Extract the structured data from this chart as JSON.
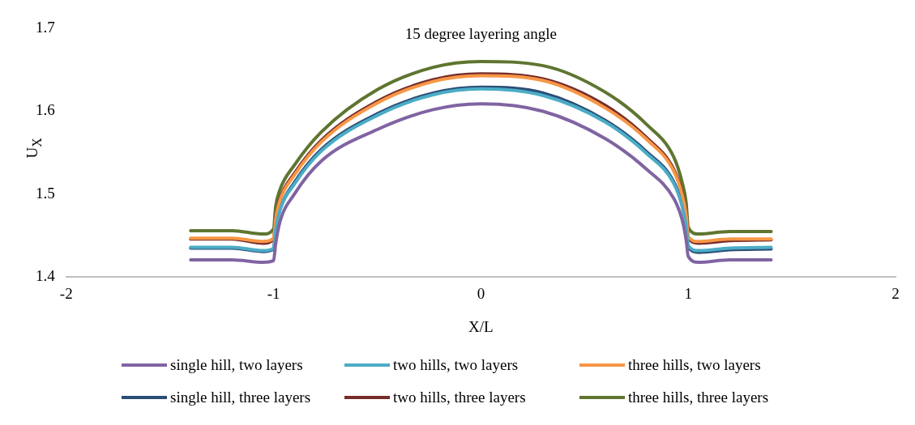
{
  "chart_data": {
    "type": "line",
    "title": "15 degree layering angle",
    "xlabel": "X/L",
    "ylabel": "U$_{X}$",
    "x": [
      -1.4,
      -1.2,
      -1.05,
      -1.0,
      -0.99,
      -0.97,
      -0.9,
      -0.77,
      -0.5,
      -0.23,
      0,
      0.3,
      0.6,
      0.8,
      0.93,
      0.97,
      0.99,
      1.0,
      1.05,
      1.2,
      1.4
    ],
    "xlim": [
      -2,
      2
    ],
    "xticks": [
      -2,
      -1,
      0,
      1,
      2
    ],
    "ylim": [
      1.4,
      1.7
    ],
    "yticks": [
      1.4,
      1.5,
      1.6,
      1.7
    ],
    "grid": false,
    "legend": "bottom",
    "marker": "none",
    "line_style": "solid",
    "series": [
      {
        "name": "single hill, two layers",
        "color": "#8064a2",
        "values": [
          1.421,
          1.421,
          1.418,
          1.42,
          1.44,
          1.466,
          1.5,
          1.54,
          1.578,
          1.602,
          1.609,
          1.6,
          1.567,
          1.53,
          1.495,
          1.47,
          1.445,
          1.425,
          1.418,
          1.421,
          1.421
        ]
      },
      {
        "name": "two hills, two layers",
        "color": "#4bacc6",
        "values": [
          1.436,
          1.436,
          1.432,
          1.435,
          1.456,
          1.48,
          1.512,
          1.552,
          1.595,
          1.62,
          1.627,
          1.619,
          1.587,
          1.549,
          1.513,
          1.486,
          1.461,
          1.438,
          1.432,
          1.435,
          1.436
        ]
      },
      {
        "name": "three hills, two layers",
        "color": "#f79646",
        "values": [
          1.447,
          1.447,
          1.443,
          1.447,
          1.47,
          1.492,
          1.523,
          1.563,
          1.61,
          1.636,
          1.643,
          1.637,
          1.604,
          1.566,
          1.528,
          1.5,
          1.475,
          1.449,
          1.443,
          1.446,
          1.446
        ]
      },
      {
        "name": "single hill, three layers",
        "color": "#2c4d75",
        "values": [
          1.435,
          1.435,
          1.431,
          1.434,
          1.458,
          1.481,
          1.514,
          1.554,
          1.597,
          1.622,
          1.629,
          1.622,
          1.589,
          1.551,
          1.515,
          1.488,
          1.463,
          1.437,
          1.43,
          1.433,
          1.434
        ]
      },
      {
        "name": "two hills, three layers",
        "color": "#772c2a",
        "values": [
          1.446,
          1.446,
          1.441,
          1.446,
          1.472,
          1.494,
          1.525,
          1.565,
          1.612,
          1.638,
          1.645,
          1.639,
          1.607,
          1.568,
          1.53,
          1.502,
          1.477,
          1.448,
          1.441,
          1.444,
          1.445
        ]
      },
      {
        "name": "three hills, three layers",
        "color": "#5f7530",
        "values": [
          1.456,
          1.456,
          1.452,
          1.458,
          1.485,
          1.505,
          1.535,
          1.575,
          1.626,
          1.653,
          1.66,
          1.655,
          1.623,
          1.584,
          1.545,
          1.515,
          1.49,
          1.46,
          1.452,
          1.455,
          1.455
        ]
      }
    ]
  }
}
